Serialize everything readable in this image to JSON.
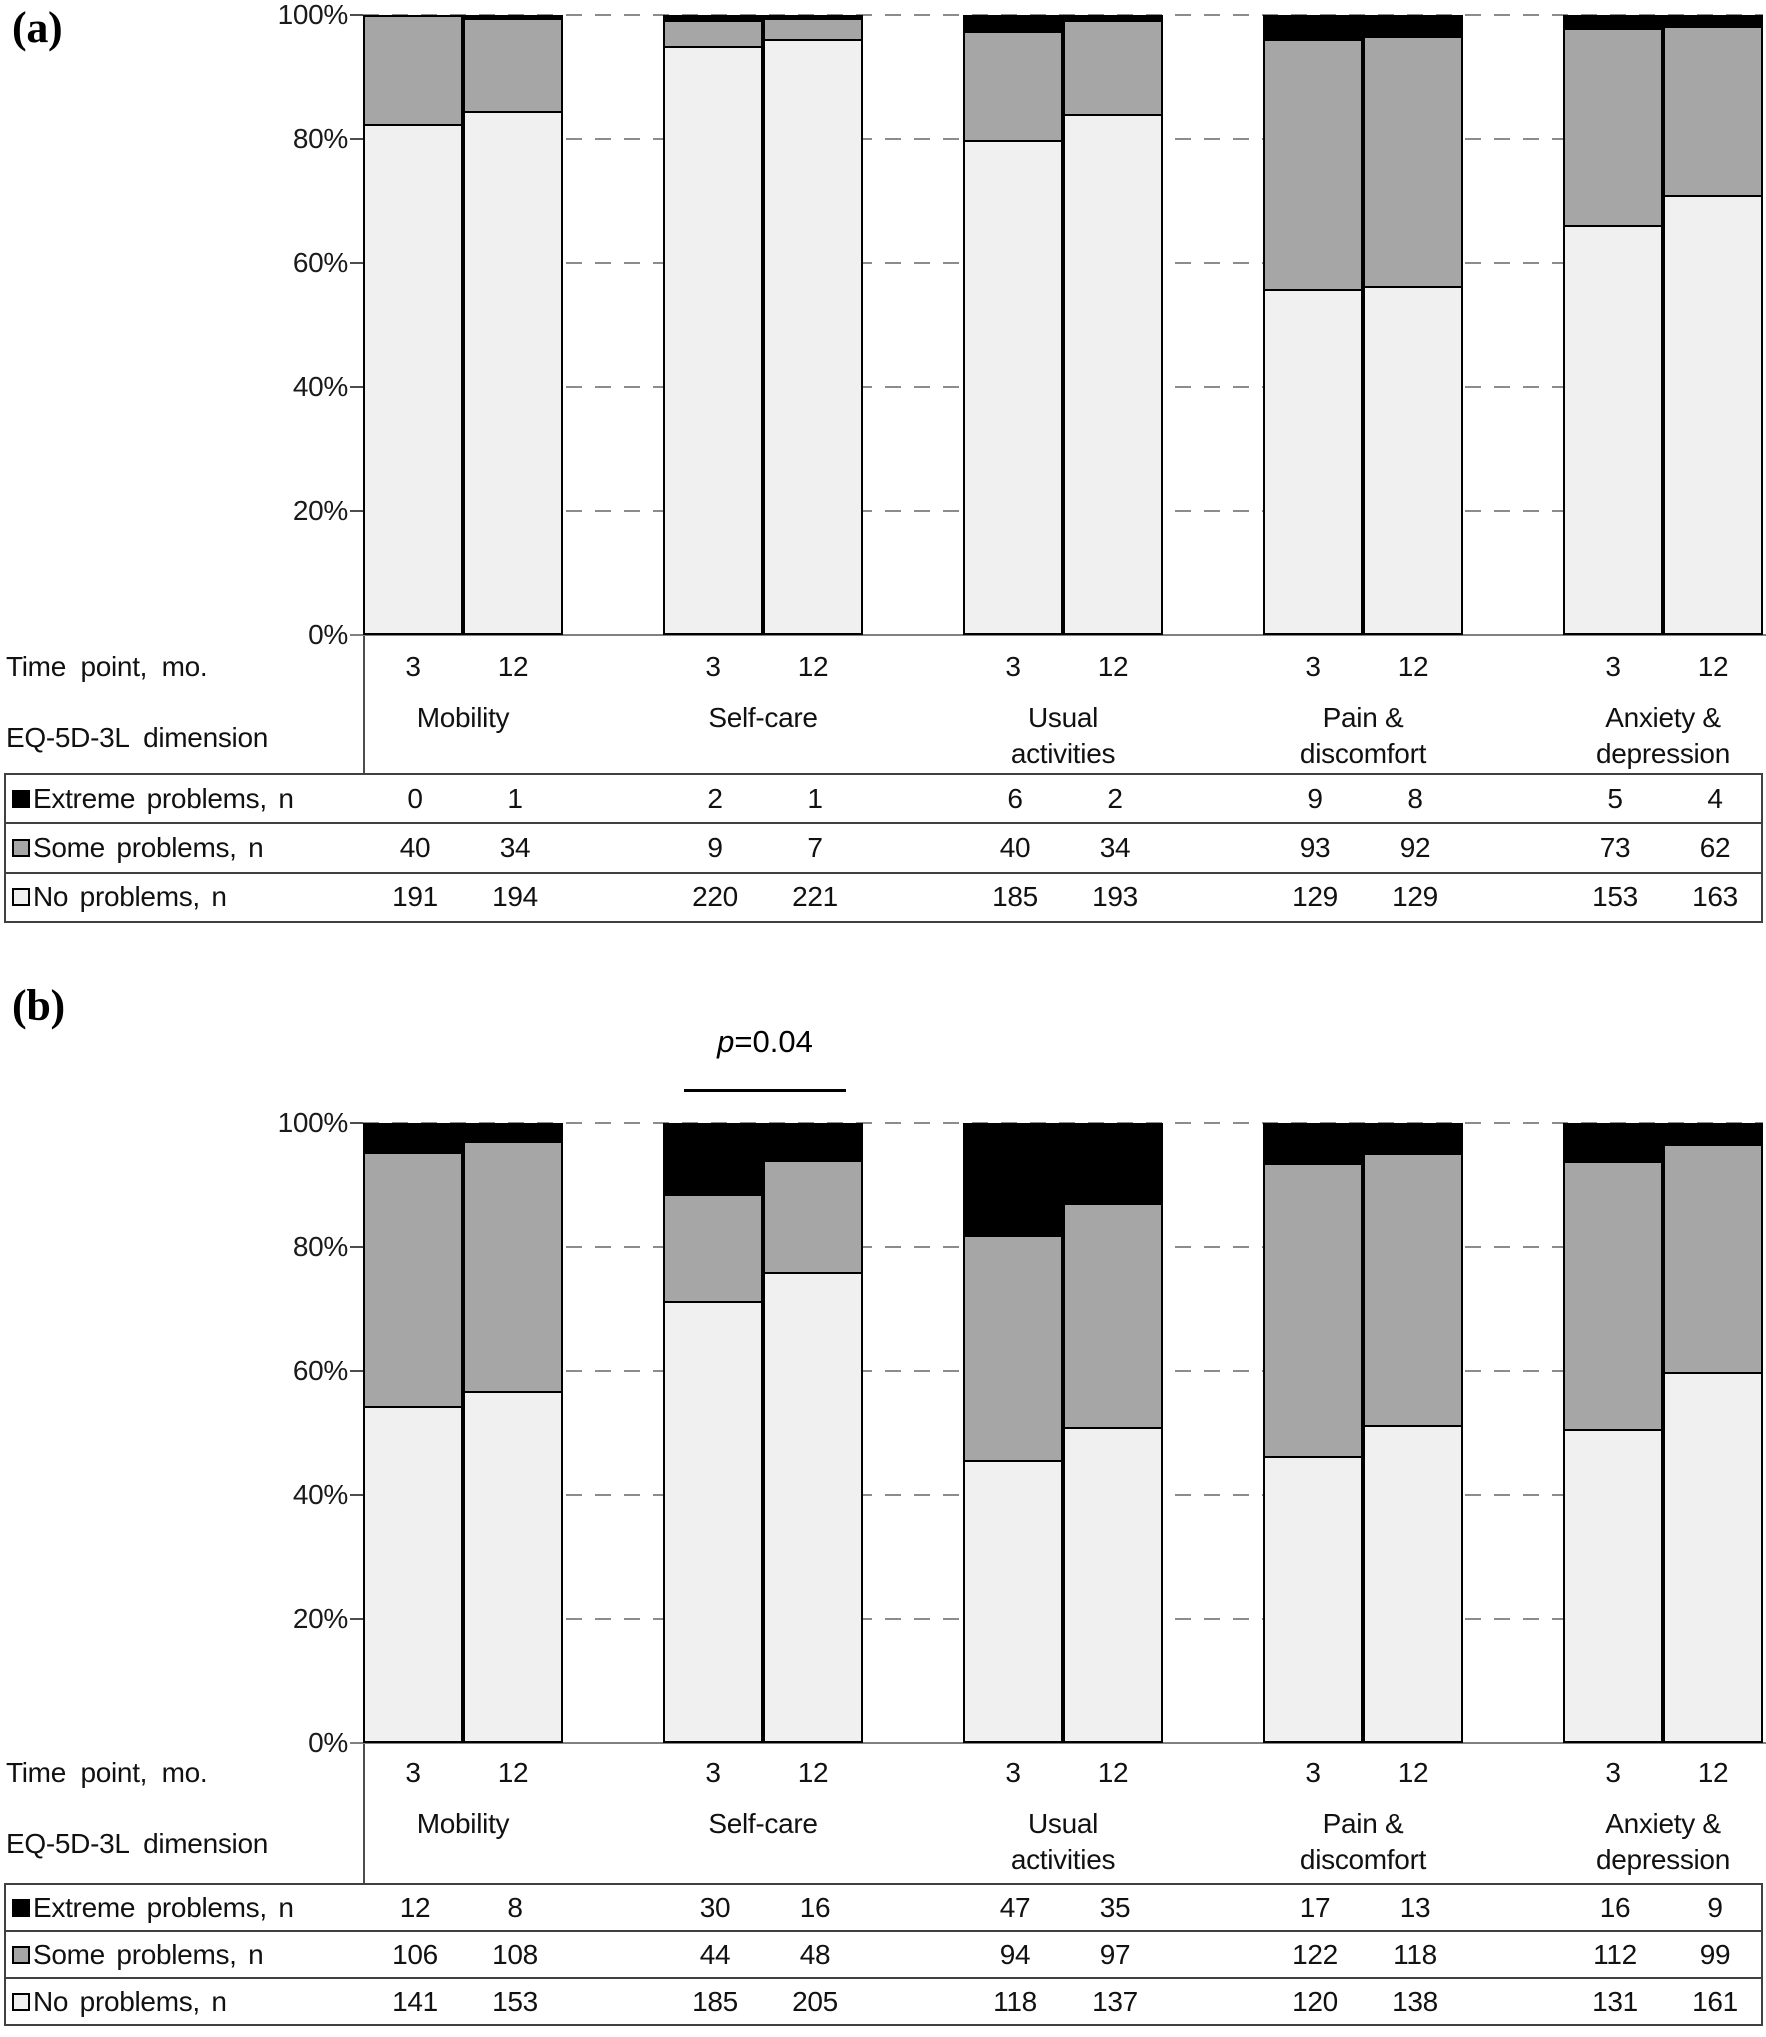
{
  "figure": {
    "row_headers": {
      "time": "Time point, mo.",
      "dimension": "EQ-5D-3L dimension"
    },
    "y_ticks": [
      "100%",
      "80%",
      "60%",
      "40%",
      "20%",
      "0%"
    ],
    "time_points": [
      "3",
      "12"
    ],
    "group_labels": [
      [
        "Mobility"
      ],
      [
        "Self-care"
      ],
      [
        "Usual",
        "activities"
      ],
      [
        "Pain &",
        "discomfort"
      ],
      [
        "Anxiety &",
        "depression"
      ]
    ],
    "legend_rows": [
      {
        "label": "Extreme problems, n",
        "swatch_color": "#000000"
      },
      {
        "label": "Some problems, n",
        "swatch_color": "#a6a6a6"
      },
      {
        "label": "No problems, n",
        "swatch_color": "#f0f0f0"
      }
    ],
    "colors": {
      "extreme": "#000000",
      "some": "#a6a6a6",
      "no_problems": "#f0f0f0",
      "grid": "#8c8c8c",
      "axis": "#808080",
      "table_border": "#404040"
    }
  },
  "chart_data": [
    {
      "type": "bar",
      "stacked": true,
      "stack_mode": "percent",
      "panel": "(a)",
      "categories": [
        "Mobility",
        "Self-care",
        "Usual activities",
        "Pain & discomfort",
        "Anxiety & depression"
      ],
      "time_points": [
        "3",
        "12"
      ],
      "ylim": [
        0,
        100
      ],
      "y_ticks_pct": [
        0,
        20,
        40,
        60,
        80,
        100
      ],
      "grid": "dashed-between-groups",
      "series": [
        {
          "name": "Extreme problems, n",
          "color": "#000000",
          "values": [
            [
              0,
              1
            ],
            [
              2,
              1
            ],
            [
              6,
              2
            ],
            [
              9,
              8
            ],
            [
              5,
              4
            ]
          ]
        },
        {
          "name": "Some problems, n",
          "color": "#a6a6a6",
          "values": [
            [
              40,
              34
            ],
            [
              9,
              7
            ],
            [
              40,
              34
            ],
            [
              93,
              92
            ],
            [
              73,
              62
            ]
          ]
        },
        {
          "name": "No problems, n",
          "color": "#f0f0f0",
          "values": [
            [
              191,
              194
            ],
            [
              220,
              221
            ],
            [
              185,
              193
            ],
            [
              129,
              129
            ],
            [
              153,
              163
            ]
          ]
        }
      ],
      "annotation": null
    },
    {
      "type": "bar",
      "stacked": true,
      "stack_mode": "percent",
      "panel": "(b)",
      "categories": [
        "Mobility",
        "Self-care",
        "Usual activities",
        "Pain & discomfort",
        "Anxiety & depression"
      ],
      "time_points": [
        "3",
        "12"
      ],
      "ylim": [
        0,
        100
      ],
      "y_ticks_pct": [
        0,
        20,
        40,
        60,
        80,
        100
      ],
      "grid": "dashed-between-groups",
      "series": [
        {
          "name": "Extreme problems, n",
          "color": "#000000",
          "values": [
            [
              12,
              8
            ],
            [
              30,
              16
            ],
            [
              47,
              35
            ],
            [
              17,
              13
            ],
            [
              16,
              9
            ]
          ]
        },
        {
          "name": "Some problems, n",
          "color": "#a6a6a6",
          "values": [
            [
              106,
              108
            ],
            [
              44,
              48
            ],
            [
              94,
              97
            ],
            [
              122,
              118
            ],
            [
              112,
              99
            ]
          ]
        },
        {
          "name": "No problems, n",
          "color": "#f0f0f0",
          "values": [
            [
              141,
              153
            ],
            [
              185,
              205
            ],
            [
              118,
              137
            ],
            [
              120,
              138
            ],
            [
              131,
              161
            ]
          ]
        }
      ],
      "annotation": {
        "p": "p",
        "rest": "=0.04",
        "over_category": "Self-care"
      }
    }
  ]
}
